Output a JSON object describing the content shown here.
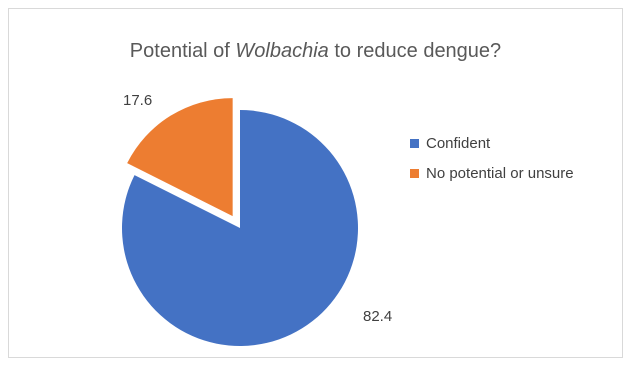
{
  "chart_data": {
    "type": "pie",
    "title_before": "Potential of ",
    "title_italic": "Wolbachia",
    "title_after": " to reduce dengue?",
    "slices": [
      {
        "label": "Confident",
        "value": 82.4,
        "color": "#4472c4",
        "exploded": false
      },
      {
        "label": "No potential or unsure",
        "value": 17.6,
        "color": "#ed7d31",
        "exploded": true
      }
    ],
    "data_labels": [
      "82.4",
      "17.6"
    ],
    "legend_position": "right"
  }
}
